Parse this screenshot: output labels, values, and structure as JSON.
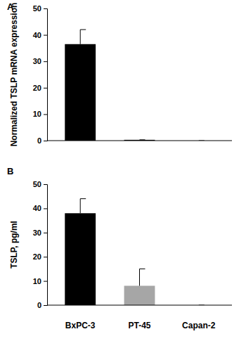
{
  "chart_data": [
    {
      "type": "bar",
      "title": "A",
      "y_label": "Normalized TSLP mRNA expression",
      "categories": [
        "BxPC-3",
        "PT-45",
        "Capan-2"
      ],
      "values": [
        36.5,
        0.3,
        0
      ],
      "errors": [
        5.5,
        0,
        0
      ],
      "colors": [
        "#000000",
        "#000000",
        "#000000"
      ],
      "ylim": [
        0,
        50
      ],
      "yticks": [
        0,
        10,
        20,
        30,
        40,
        50
      ],
      "tick_labels": "y"
    },
    {
      "type": "bar",
      "title": "B",
      "y_label": "TSLP, pg/ml",
      "categories": [
        "BxPC-3",
        "PT-45",
        "Capan-2"
      ],
      "values": [
        38,
        8,
        0
      ],
      "errors": [
        6,
        7,
        0
      ],
      "colors": [
        "#000000",
        "#a6a6a6",
        "#a6a6a6"
      ],
      "ylim": [
        0,
        50
      ],
      "yticks": [
        0,
        10,
        20,
        30,
        40,
        50
      ]
    }
  ]
}
